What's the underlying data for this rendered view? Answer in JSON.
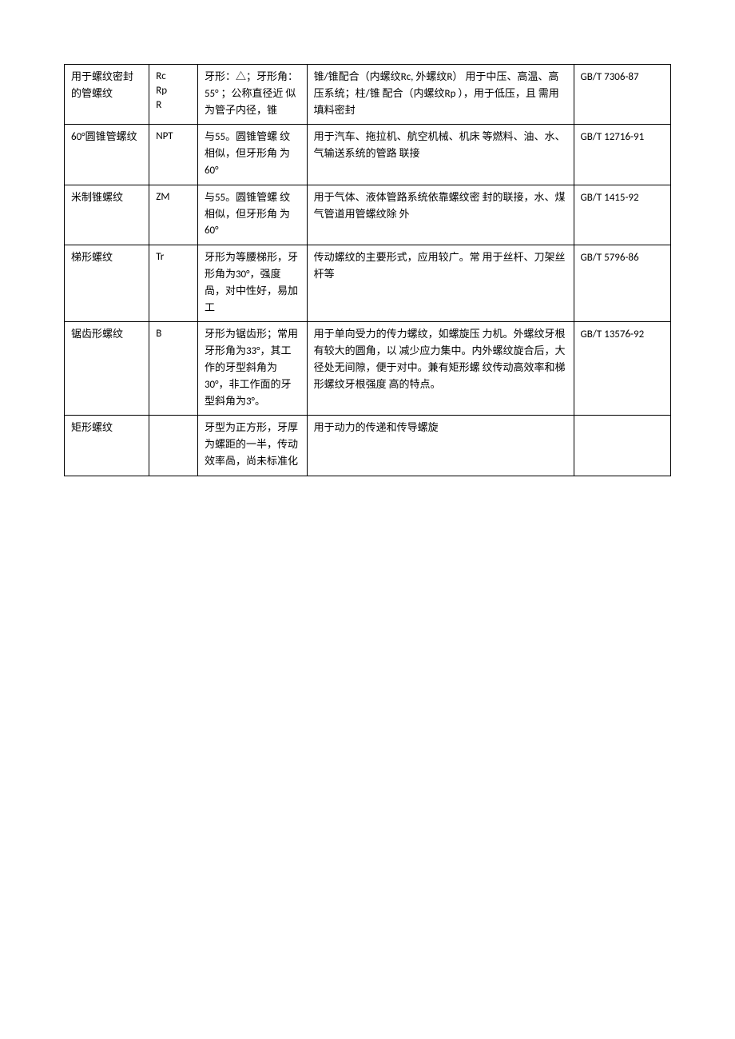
{
  "table": {
    "columns": {
      "widths": [
        14,
        8,
        18,
        44,
        16
      ],
      "border_color": "#000000",
      "font_size": 13,
      "line_height": 1.6
    },
    "rows": [
      {
        "name": "用于螺纹密封的管螺纹",
        "code": "Rc\nRp\nR",
        "shape": "牙形：△；牙形角： 55° ；公称直径近 似为管子内径，锥",
        "application": "锥/锥配合（内螺纹Rc, 外螺纹R） 用于中压、高温、高压系统；柱/锥 配合（内螺纹Rp ），用于低压，且 需用填料密封",
        "standard": "GB/T 7306-87"
      },
      {
        "name": "60°圆锥管螺纹",
        "code": "NPT",
        "shape": "与55。圆锥管螺 纹相似，但牙形角 为60°",
        "application": "用于汽车、拖拉机、航空机械、机床 等燃料、油、水、气输送系统的管路 联接",
        "standard": "GB/T 12716-91"
      },
      {
        "name": "米制锥螺纹",
        "code": "ZM",
        "shape": "与55。圆锥管螺 纹相似，但牙形角 为60°",
        "application": "用于气体、液体管路系统依靠螺纹密 封的联接，水、煤气管道用管螺纹除 外",
        "standard": "GB/T 1415-92"
      },
      {
        "name": "梯形螺纹",
        "code": "Tr",
        "shape": "牙形为等腰梯形，牙形角为30°，强度咼，对中性好，易加工",
        "application": "传动螺纹的主要形式，应用较广。常 用于丝杆、刀架丝杆等",
        "standard": "GB/T 5796-86"
      },
      {
        "name": "锯齿形螺纹",
        "code": "B",
        "shape": "牙形为锯齿形；常用牙形角为33°，其工作的牙型斜角为30°，非工作面的牙型斜角为3°。",
        "application": "用于单向受力的传力螺纹，如螺旋压 力机。外螺纹牙根有较大的圆角，以 减少应力集中。内外螺纹旋合后，大 径处无间隙，便于对中。兼有矩形螺 纹传动高效率和梯形螺纹牙根强度 高的特点。",
        "standard": "GB/T 13576-92"
      },
      {
        "name": "矩形螺纹",
        "code": "",
        "shape": "牙型为正方形，牙厚为螺距的一半，传动效率咼，尚未标准化",
        "application": "用于动力的传递和传导螺旋",
        "standard": ""
      }
    ]
  }
}
